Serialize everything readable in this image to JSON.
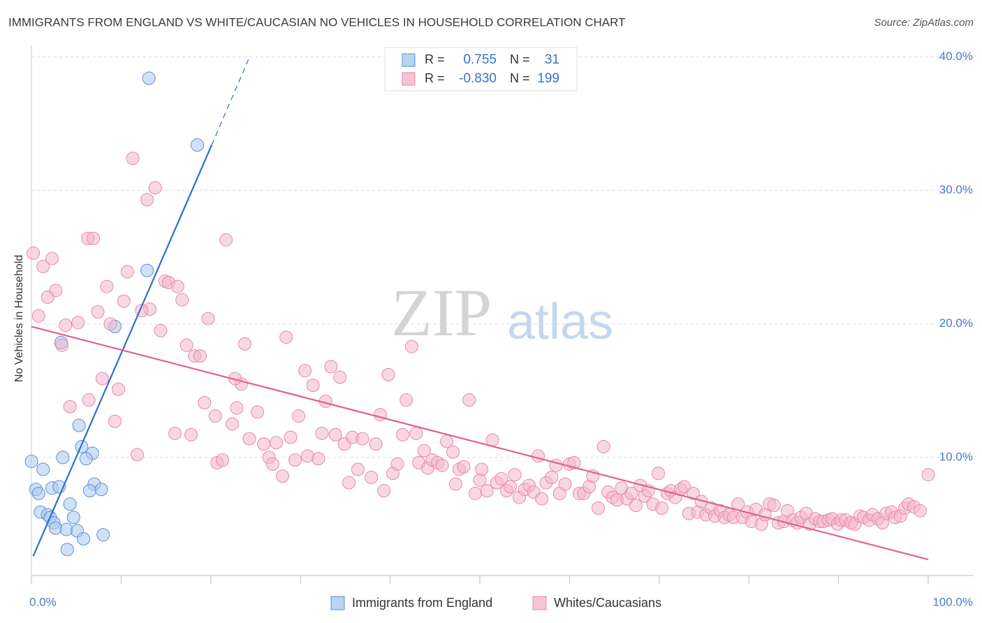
{
  "chart_data": {
    "type": "scatter",
    "title": "IMMIGRANTS FROM ENGLAND VS WHITE/CAUCASIAN NO VEHICLES IN HOUSEHOLD CORRELATION CHART",
    "source": "Source: ZipAtlas.com",
    "ylabel": "No Vehicles in Household",
    "watermark": [
      "ZIP",
      "atlas"
    ],
    "legend_labels": {
      "r": "R =",
      "n": "N ="
    },
    "xlim": [
      0,
      100
    ],
    "ylim": [
      1.15,
      40.6
    ],
    "xticks": [
      {
        "value": 0,
        "label": "0.0%"
      },
      {
        "value": 10,
        "label": null
      },
      {
        "value": 20,
        "label": null
      },
      {
        "value": 30,
        "label": null
      },
      {
        "value": 40,
        "label": null
      },
      {
        "value": 50,
        "label": null
      },
      {
        "value": 60,
        "label": null
      },
      {
        "value": 70,
        "label": null
      },
      {
        "value": 80,
        "label": null
      },
      {
        "value": 90,
        "label": null
      },
      {
        "value": 100,
        "label": "100.0%"
      }
    ],
    "yticks": [
      {
        "value": 10,
        "label": "10.0%"
      },
      {
        "value": 20,
        "label": "20.0%"
      },
      {
        "value": 30,
        "label": "30.0%"
      },
      {
        "value": 40,
        "label": "40.0%"
      }
    ],
    "grid": true,
    "series": [
      {
        "name": "Immigrants from England",
        "color": "#a9c8f0",
        "edge": "#5b8fd6",
        "line_color": "#2c6fcf",
        "r": "0.755",
        "n": "31",
        "x": [
          13.1,
          18.5,
          12.9,
          9.3,
          3.3,
          5.3,
          5.6,
          6.8,
          3.5,
          6.1,
          0,
          1.3,
          0.5,
          0.8,
          2.3,
          3.1,
          7.0,
          7.8,
          6.5,
          1.0,
          1.8,
          2.1,
          4.3,
          4.7,
          2.5,
          2.7,
          3.9,
          5.1,
          5.8,
          8.0,
          4.0
        ],
        "values": [
          38.4,
          33.4,
          24.0,
          19.8,
          18.6,
          12.4,
          10.8,
          10.3,
          10.0,
          9.9,
          9.7,
          9.1,
          7.6,
          7.3,
          7.7,
          7.8,
          8.0,
          7.6,
          7.5,
          5.9,
          5.7,
          5.5,
          6.5,
          5.5,
          5.1,
          4.7,
          4.6,
          4.5,
          3.9,
          4.2,
          3.1
        ],
        "trend": {
          "x": [
            0.2,
            20.1
          ],
          "y": [
            2.6,
            33.4
          ]
        },
        "trend_dashed": {
          "x": [
            20.1,
            24.2
          ],
          "y": [
            33.4,
            39.8
          ]
        }
      },
      {
        "name": "Whites/Caucasians",
        "color": "#f4b6c8",
        "edge": "#e58aa8",
        "line_color": "#e0628f",
        "r": "-0.830",
        "n": "199",
        "x": [
          0.2,
          0.8,
          1.3,
          2.3,
          2.7,
          1.8,
          3.8,
          5.2,
          3.4,
          4.3,
          6.4,
          7.9,
          7.4,
          6.3,
          6.9,
          8.4,
          8.8,
          9.7,
          9.3,
          10.3,
          10.7,
          11.3,
          11.8,
          12.9,
          13.8,
          13.2,
          12.3,
          14.4,
          14.9,
          15.3,
          16.3,
          16.8,
          16.0,
          17.8,
          17.3,
          18.2,
          18.8,
          19.7,
          19.3,
          20.5,
          20.7,
          21.3,
          21.7,
          22.4,
          22.9,
          23.4,
          22.7,
          23.8,
          24.3,
          25.2,
          25.9,
          26.5,
          26.9,
          27.3,
          28.0,
          28.4,
          28.9,
          29.4,
          29.8,
          30.5,
          30.8,
          31.4,
          32.0,
          32.4,
          32.8,
          33.4,
          33.9,
          34.4,
          34.9,
          35.4,
          35.8,
          36.4,
          36.9,
          37.9,
          38.4,
          38.9,
          39.3,
          39.8,
          40.3,
          40.8,
          41.4,
          41.8,
          42.4,
          42.9,
          43.2,
          43.8,
          44.2,
          44.7,
          45.3,
          45.8,
          46.3,
          47.0,
          47.3,
          47.7,
          48.2,
          48.8,
          49.5,
          50.0,
          50.2,
          50.8,
          51.4,
          51.9,
          52.4,
          53.0,
          53.4,
          53.9,
          54.4,
          55.0,
          55.5,
          56.0,
          56.5,
          56.9,
          57.4,
          58.0,
          58.5,
          58.9,
          59.5,
          60.0,
          60.5,
          61.1,
          61.6,
          62.2,
          62.6,
          63.2,
          63.8,
          64.3,
          64.8,
          65.3,
          65.8,
          66.4,
          66.9,
          67.4,
          67.9,
          68.4,
          68.8,
          69.3,
          69.9,
          70.3,
          70.9,
          71.3,
          71.8,
          72.4,
          72.8,
          73.3,
          73.8,
          74.3,
          74.7,
          75.2,
          75.8,
          76.2,
          76.8,
          77.3,
          77.8,
          78.3,
          78.8,
          79.3,
          79.8,
          80.3,
          80.8,
          81.4,
          81.8,
          82.3,
          82.8,
          83.3,
          83.9,
          84.3,
          84.9,
          85.4,
          85.8,
          86.4,
          86.8,
          87.4,
          87.9,
          88.3,
          88.9,
          89.3,
          89.9,
          90.3,
          90.8,
          91.4,
          91.8,
          92.4,
          92.8,
          93.4,
          93.8,
          94.4,
          94.9,
          95.3,
          95.9,
          96.3,
          96.9,
          97.4,
          97.8,
          98.4,
          99.1,
          100
        ],
        "values": [
          25.3,
          20.6,
          24.3,
          24.9,
          22.5,
          22.0,
          19.9,
          20.1,
          18.4,
          13.8,
          14.3,
          15.9,
          20.9,
          26.4,
          26.4,
          22.8,
          20.0,
          15.1,
          12.7,
          21.7,
          23.9,
          32.4,
          10.2,
          29.3,
          30.2,
          21.1,
          21.0,
          19.5,
          23.2,
          23.1,
          22.8,
          21.8,
          11.8,
          11.7,
          18.4,
          17.6,
          17.6,
          20.4,
          14.1,
          13.1,
          9.6,
          9.8,
          26.3,
          12.5,
          13.7,
          15.5,
          15.9,
          18.5,
          11.4,
          13.4,
          11.0,
          10.0,
          9.5,
          11.1,
          8.6,
          19.0,
          11.5,
          9.8,
          13.1,
          16.5,
          10.1,
          15.4,
          9.9,
          11.8,
          14.2,
          16.8,
          11.7,
          16.0,
          11.0,
          8.1,
          11.5,
          9.1,
          11.4,
          8.5,
          11.0,
          13.2,
          7.5,
          16.2,
          8.8,
          9.5,
          11.7,
          14.3,
          18.3,
          11.8,
          9.6,
          10.5,
          9.2,
          9.8,
          9.6,
          9.4,
          11.2,
          10.4,
          8.0,
          9.1,
          9.3,
          14.3,
          7.3,
          8.3,
          9.1,
          7.5,
          11.3,
          8.1,
          8.4,
          7.5,
          7.8,
          8.7,
          7.0,
          7.6,
          7.9,
          7.4,
          10.1,
          6.9,
          8.1,
          8.5,
          9.4,
          7.3,
          8.0,
          9.5,
          9.6,
          7.3,
          7.3,
          7.8,
          8.6,
          6.2,
          10.8,
          7.4,
          7.0,
          6.8,
          7.7,
          6.9,
          7.3,
          6.4,
          7.9,
          7.1,
          7.5,
          6.5,
          8.8,
          6.2,
          7.3,
          7.5,
          7.0,
          7.6,
          7.8,
          5.8,
          7.3,
          5.9,
          6.7,
          5.7,
          6.2,
          5.6,
          6.0,
          5.5,
          5.7,
          5.5,
          6.5,
          5.5,
          5.9,
          5.2,
          6.1,
          5.0,
          5.7,
          6.5,
          6.4,
          5.1,
          5.2,
          6.0,
          5.3,
          5.1,
          5.5,
          5.8,
          5.0,
          5.4,
          5.2,
          5.2,
          5.3,
          5.4,
          5.0,
          5.3,
          5.3,
          5.1,
          5.0,
          5.6,
          5.5,
          5.3,
          5.7,
          5.4,
          5.1,
          5.8,
          5.9,
          5.5,
          5.6,
          6.2,
          6.5,
          6.3,
          6.0,
          8.7
        ],
        "trend": {
          "x": [
            0,
            100
          ],
          "y": [
            19.8,
            2.35
          ]
        }
      }
    ]
  }
}
